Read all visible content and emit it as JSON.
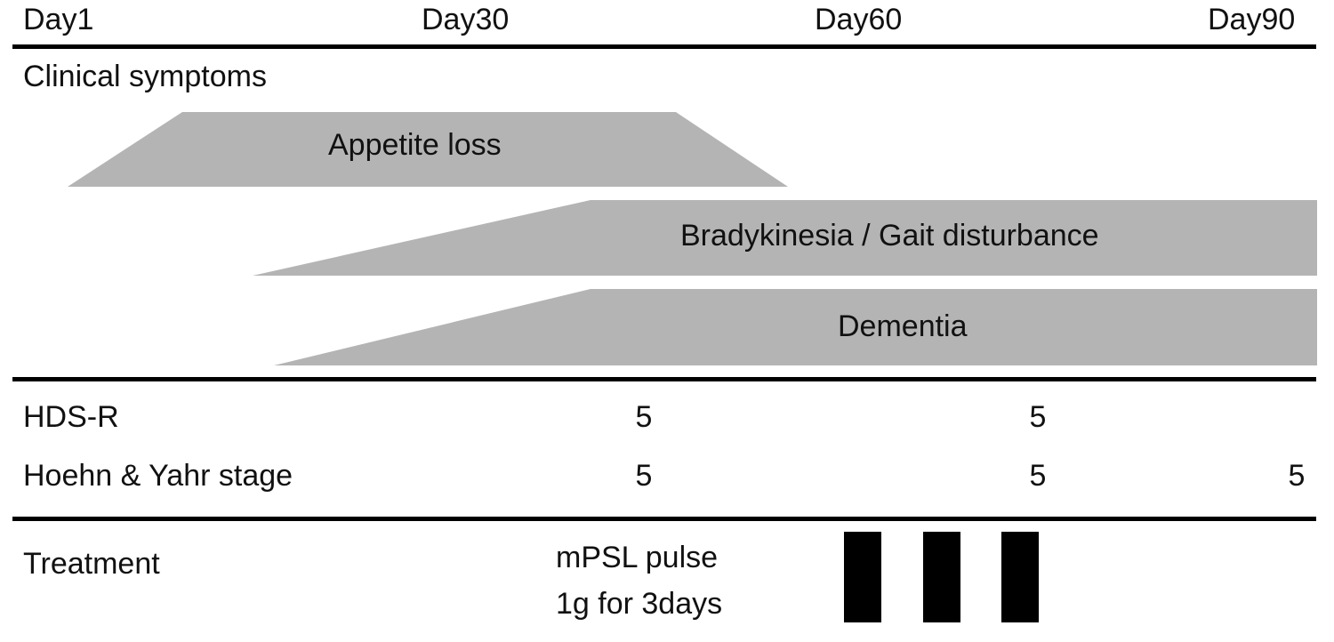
{
  "timeline": {
    "days": [
      "Day1",
      "Day30",
      "Day60",
      "Day90"
    ]
  },
  "sections": {
    "clinical_symptoms": "Clinical symptoms",
    "treatment": "Treatment"
  },
  "symptoms": [
    {
      "label": "Appetite loss"
    },
    {
      "label": "Bradykinesia / Gait disturbance"
    },
    {
      "label": "Dementia"
    }
  ],
  "scores": {
    "hdsr": {
      "label": "HDS-R",
      "values": [
        "5",
        "5"
      ]
    },
    "hoehn_yahr": {
      "label": "Hoehn & Yahr stage",
      "values": [
        "5",
        "5",
        "5"
      ]
    }
  },
  "treatment": {
    "line1": "mPSL pulse",
    "line2": "1g for 3days",
    "pulses": 3
  },
  "colors": {
    "symptom_fill": "#b4b4b4",
    "rule": "#000000",
    "pulse": "#000000"
  }
}
